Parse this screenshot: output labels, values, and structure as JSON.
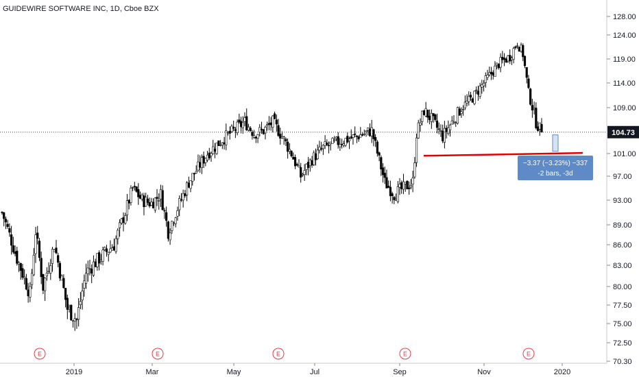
{
  "chart_data": {
    "type": "candlestick",
    "title": "GUIDEWIRE SOFTWARE INC, 1D, Cboe BZX",
    "y_ticks": [
      "128.00",
      "124.00",
      "119.00",
      "114.00",
      "109.00",
      "101.00",
      "97.00",
      "93.00",
      "89.00",
      "86.00",
      "83.00",
      "80.00",
      "77.50",
      "75.00",
      "72.50",
      "70.30"
    ],
    "y_tick_values": [
      128,
      124,
      119,
      114,
      109,
      101,
      97,
      93,
      89,
      86,
      83,
      80,
      77.5,
      75,
      72.5,
      70.3
    ],
    "x_ticks": [
      "2019",
      "Mar",
      "May",
      "Jul",
      "Sep",
      "Nov",
      "2020"
    ],
    "last_price": 104.73,
    "last_price_label": "104.73",
    "earnings_marker_label": "E",
    "earnings_markers": [
      "Dec 2018",
      "Feb 2019",
      "Jun 2019",
      "Aug 2019",
      "Nov 2019"
    ],
    "measure_line1": "−3.37 (−3.23%) −337",
    "measure_line2": "-2 bars, -3d",
    "support_line": {
      "from": 100.6,
      "to": 101.1
    },
    "colors": {
      "up": "#ffffff",
      "down": "#000000",
      "wick": "#000000",
      "support": "#e00000",
      "price_line": "#444444",
      "earnings": "#f23645",
      "measure": "#5e8ac7"
    },
    "grid": false,
    "price_waypoints": [
      [
        0,
        91
      ],
      [
        8,
        84
      ],
      [
        15,
        79
      ],
      [
        18,
        88
      ],
      [
        22,
        80
      ],
      [
        28,
        86
      ],
      [
        35,
        77
      ],
      [
        40,
        75.5
      ],
      [
        45,
        82
      ],
      [
        52,
        84
      ],
      [
        60,
        86
      ],
      [
        66,
        91
      ],
      [
        70,
        95
      ],
      [
        75,
        93
      ],
      [
        80,
        92.5
      ],
      [
        85,
        94
      ],
      [
        89,
        88
      ],
      [
        93,
        91
      ],
      [
        100,
        96
      ],
      [
        110,
        101
      ],
      [
        120,
        104
      ],
      [
        130,
        106.5
      ],
      [
        135,
        104.5
      ],
      [
        140,
        105
      ],
      [
        145,
        106.5
      ],
      [
        150,
        104
      ],
      [
        155,
        101
      ],
      [
        160,
        97
      ],
      [
        166,
        100
      ],
      [
        172,
        102
      ],
      [
        180,
        103
      ],
      [
        190,
        104
      ],
      [
        198,
        105
      ],
      [
        205,
        96
      ],
      [
        210,
        94
      ],
      [
        215,
        95
      ],
      [
        220,
        96
      ],
      [
        222,
        104.5
      ],
      [
        226,
        108.5
      ],
      [
        230,
        107
      ],
      [
        236,
        104
      ],
      [
        240,
        106
      ],
      [
        246,
        109
      ],
      [
        252,
        111
      ],
      [
        258,
        114
      ],
      [
        262,
        116
      ],
      [
        266,
        118
      ],
      [
        272,
        119.5
      ],
      [
        276,
        122.5
      ],
      [
        279,
        120
      ],
      [
        282,
        112
      ],
      [
        286,
        106.5
      ],
      [
        289,
        104.73
      ]
    ]
  }
}
